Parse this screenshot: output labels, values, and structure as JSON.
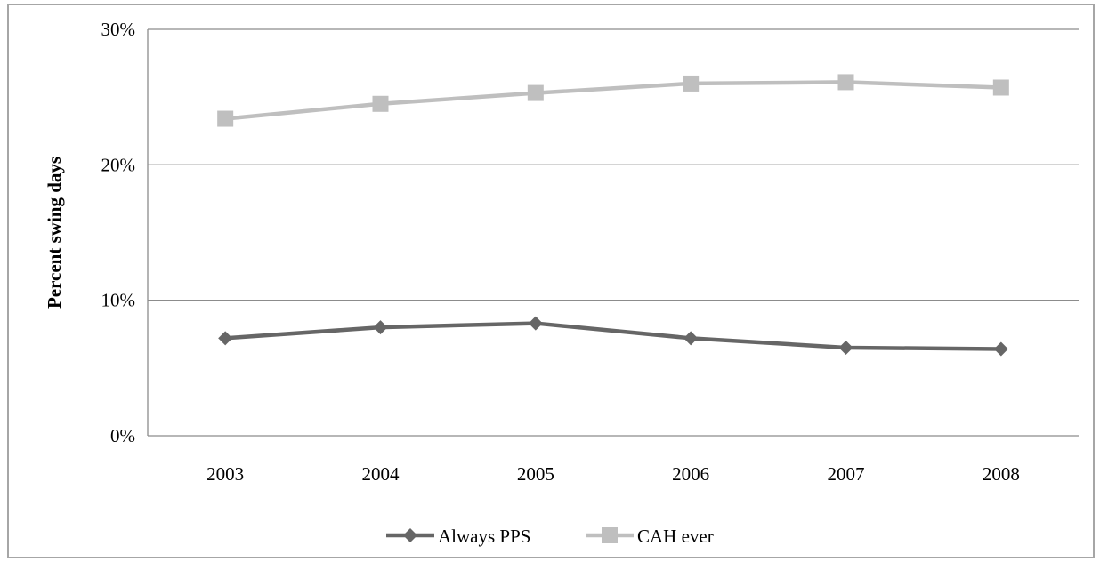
{
  "chart_data": {
    "type": "line",
    "title": "",
    "xlabel": "",
    "ylabel": "Percent swing days",
    "categories": [
      "2003",
      "2004",
      "2005",
      "2006",
      "2007",
      "2008"
    ],
    "ylim": [
      0,
      30
    ],
    "yticks": [
      "0%",
      "10%",
      "20%",
      "30%"
    ],
    "ytick_values": [
      0,
      10,
      20,
      30
    ],
    "grid": "horizontal",
    "legend_position": "bottom",
    "series": [
      {
        "name": "Always PPS",
        "values": [
          7.2,
          8.0,
          8.3,
          7.2,
          6.5,
          6.4
        ],
        "color": "#666666",
        "marker": "diamond"
      },
      {
        "name": "CAH ever",
        "values": [
          23.4,
          24.5,
          25.3,
          26.0,
          26.1,
          25.7
        ],
        "color": "#bfbfbf",
        "marker": "square"
      }
    ]
  }
}
